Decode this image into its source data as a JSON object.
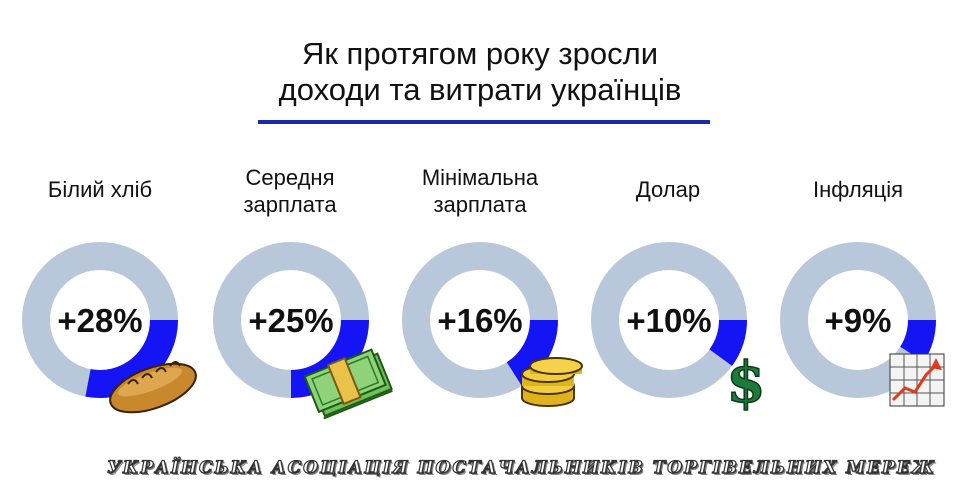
{
  "title_line1": "Як протягом року зросли",
  "title_line2": "доходи та витрати українців",
  "colors": {
    "track": "#b8c7d9",
    "fill": "#1414f5",
    "rule": "#1a2aa8"
  },
  "chart_data": {
    "type": "donut",
    "items": [
      {
        "label_line1": "Білий хліб",
        "label_line2": "",
        "value": 28,
        "value_label": "+28%",
        "icon": "bread-icon"
      },
      {
        "label_line1": "Середня",
        "label_line2": "зарплата",
        "value": 25,
        "value_label": "+25%",
        "icon": "money-stack-icon"
      },
      {
        "label_line1": "Мінімальна",
        "label_line2": "зарплата",
        "value": 16,
        "value_label": "+16%",
        "icon": "coins-icon"
      },
      {
        "label_line1": "Долар",
        "label_line2": "",
        "value": 10,
        "value_label": "+10%",
        "icon": "dollar-sign-icon"
      },
      {
        "label_line1": "Інфляція",
        "label_line2": "",
        "value": 9,
        "value_label": "+9%",
        "icon": "growth-chart-icon"
      }
    ]
  },
  "footer": "УКРАЇНСЬКА АСОЦІАЦІЯ ПОСТАЧАЛЬНИКІВ ТОРГІВЕЛЬНИХ МЕРЕЖ"
}
